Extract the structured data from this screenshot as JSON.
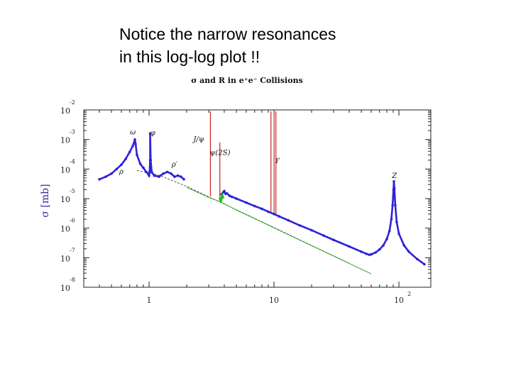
{
  "caption": {
    "line1": "Notice the narrow resonances",
    "line2": "in this log-log plot !!"
  },
  "chart_data": {
    "type": "line",
    "title": "σ and R in e⁺e⁻ Collisions",
    "ylabel": "σ [mb]",
    "xlabel": "",
    "xscale": "log",
    "yscale": "log",
    "xlim": [
      0.3,
      180
    ],
    "ylim": [
      1e-08,
      0.01
    ],
    "grid": false,
    "x_ticks": [
      {
        "value": 1,
        "base": "1",
        "exp": ""
      },
      {
        "value": 10,
        "base": "10",
        "exp": ""
      },
      {
        "value": 100,
        "base": "10",
        "exp": "2"
      }
    ],
    "y_ticks": [
      {
        "value": 1e-08,
        "base": "10",
        "exp": "-8"
      },
      {
        "value": 1e-07,
        "base": "10",
        "exp": "-7"
      },
      {
        "value": 1e-06,
        "base": "10",
        "exp": "-6"
      },
      {
        "value": 1e-05,
        "base": "10",
        "exp": "-5"
      },
      {
        "value": 0.0001,
        "base": "10",
        "exp": "-4"
      },
      {
        "value": 0.001,
        "base": "10",
        "exp": "-3"
      },
      {
        "value": 0.01,
        "base": "10",
        "exp": "-2"
      }
    ],
    "colors": {
      "data": "#2f22d8",
      "green_data": "#22bb22",
      "resonance": "#cc2222",
      "fit_dashed": "#555555",
      "fit_green": "#33aa33"
    },
    "annotations": [
      {
        "text": "ρ",
        "x": 0.6,
        "y": 7e-05
      },
      {
        "text": "ω",
        "x": 0.74,
        "y": 0.0015
      },
      {
        "text": "φ",
        "x": 1.07,
        "y": 0.0014
      },
      {
        "text": "ρ′",
        "x": 1.6,
        "y": 0.00012
      },
      {
        "text": "J/ψ",
        "x": 2.5,
        "y": 0.00085
      },
      {
        "text": "ψ(2S)",
        "x": 3.7,
        "y": 0.0003
      },
      {
        "text": "ϒ",
        "x": 10.6,
        "y": 0.00016
      },
      {
        "text": "Z",
        "x": 92,
        "y": 5e-05
      }
    ],
    "series": [
      {
        "style": "data",
        "x": [
          0.4,
          0.45,
          0.5,
          0.55,
          0.6,
          0.65,
          0.7,
          0.74,
          0.77,
          0.78,
          0.8,
          0.85,
          0.9,
          0.95,
          1.0,
          1.01,
          1.02,
          1.02,
          1.03,
          1.05,
          1.1,
          1.2,
          1.3,
          1.4,
          1.5,
          1.6,
          1.7,
          1.8,
          1.9
        ],
        "y": [
          4.5e-05,
          5.5e-05,
          7e-05,
          0.0001,
          0.00014,
          0.00022,
          0.00038,
          0.0006,
          0.001,
          0.0007,
          0.0003,
          0.00015,
          0.00011,
          8e-05,
          6e-05,
          8e-05,
          0.0002,
          0.0016,
          0.0002,
          8e-05,
          6e-05,
          5.5e-05,
          7e-05,
          8e-05,
          7e-05,
          5.5e-05,
          6e-05,
          5.5e-05,
          4.5e-05
        ]
      },
      {
        "style": "data",
        "x": [
          3.8,
          3.9,
          4.0,
          4.1,
          4.2,
          4.4,
          4.6,
          5.0,
          6,
          7,
          8,
          9,
          10,
          11,
          13,
          16,
          20,
          25,
          30,
          40,
          50,
          55,
          58,
          60,
          65,
          70,
          75,
          80,
          84,
          87,
          89,
          90.5,
          91.2,
          92,
          93.5,
          96,
          100,
          110,
          120,
          140,
          160
        ],
        "y": [
          1.4e-05,
          1.6e-05,
          1.8e-05,
          1.45e-05,
          1.5e-05,
          1.25e-05,
          1.15e-05,
          1e-05,
          7.3e-06,
          5.6e-06,
          4.5e-06,
          3.6e-06,
          3e-06,
          2.5e-06,
          1.85e-06,
          1.25e-06,
          8.5e-07,
          5.6e-07,
          4e-07,
          2.4e-07,
          1.6e-07,
          1.35e-07,
          1.25e-07,
          1.3e-07,
          1.5e-07,
          1.9e-07,
          2.6e-07,
          4.3e-07,
          8e-07,
          2e-06,
          6e-06,
          2e-05,
          3.8e-05,
          2.2e-05,
          6e-06,
          1.6e-06,
          6.5e-07,
          2.6e-07,
          1.6e-07,
          9e-08,
          6e-08
        ]
      },
      {
        "style": "fit_dashed",
        "x": [
          0.8,
          1.2,
          2,
          3,
          5,
          10,
          20,
          40
        ],
        "y": [
          9e-05,
          6.2e-05,
          2.6e-05,
          1.15e-05,
          4.2e-06,
          1.05e-06,
          2.6e-07,
          6.5e-08
        ]
      },
      {
        "style": "fit_green",
        "x": [
          2,
          3,
          3.8,
          5,
          10,
          20,
          40,
          60
        ],
        "y": [
          2.4e-05,
          1.1e-05,
          7.5e-06,
          4.1e-06,
          1.02e-06,
          2.55e-07,
          6.4e-08,
          2.85e-08
        ]
      },
      {
        "style": "green_data",
        "x": [
          3.7,
          3.75,
          3.8,
          3.85,
          3.9
        ],
        "y": [
          1e-05,
          8e-06,
          1e-05,
          1.3e-05,
          1.1e-05
        ]
      }
    ],
    "resonances": [
      {
        "x": 3.097,
        "base_y": 1.2e-05,
        "peak_y": 0.01
      },
      {
        "x": 3.686,
        "base_y": 9e-06,
        "peak_y": 0.0008
      },
      {
        "x": 9.46,
        "base_y": 3.2e-06,
        "peak_y": 0.01
      },
      {
        "x": 10.02,
        "base_y": 2.9e-06,
        "peak_y": 0.01
      },
      {
        "x": 10.36,
        "base_y": 2.7e-06,
        "peak_y": 0.01
      }
    ]
  }
}
